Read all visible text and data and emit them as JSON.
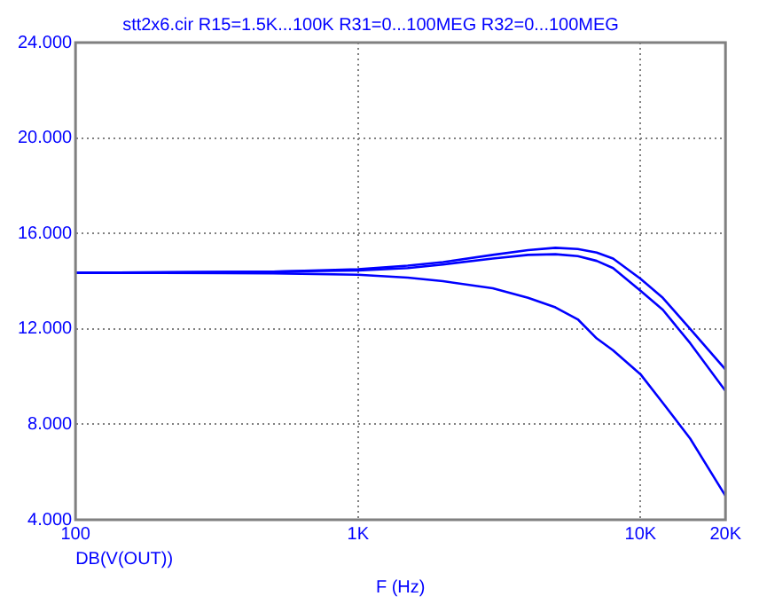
{
  "chart_data": {
    "type": "line",
    "title": "stt2x6.cir R15=1.5K...100K R31=0...100MEG R32=0...100MEG",
    "xlabel": "F (Hz)",
    "annotations": [
      "DB(V(OUT))"
    ],
    "log": "x",
    "x": [
      100,
      200,
      500,
      1000,
      1500,
      2000,
      3000,
      4000,
      5000,
      6000,
      7000,
      8000,
      10000,
      12000,
      15000,
      20000
    ],
    "series": [
      {
        "color": "#0000ff",
        "values": [
          14.35,
          14.37,
          14.4,
          14.5,
          14.65,
          14.8,
          15.1,
          15.3,
          15.4,
          15.35,
          15.2,
          14.95,
          14.1,
          13.3,
          12.0,
          10.3
        ]
      },
      {
        "color": "#0000ff",
        "values": [
          14.35,
          14.37,
          14.4,
          14.45,
          14.55,
          14.7,
          14.95,
          15.1,
          15.13,
          15.05,
          14.85,
          14.55,
          13.6,
          12.8,
          11.4,
          9.4
        ]
      },
      {
        "color": "#0000ff",
        "values": [
          14.35,
          14.35,
          14.33,
          14.27,
          14.15,
          14.0,
          13.7,
          13.3,
          12.9,
          12.4,
          11.6,
          11.1,
          10.1,
          8.9,
          7.4,
          5.0
        ]
      }
    ],
    "xlim": [
      100,
      20000
    ],
    "xticks": [
      100,
      {
        "value": 1000,
        "label": "1K"
      },
      {
        "value": 10000,
        "label": "10K"
      },
      {
        "value": 20000,
        "label": "20K"
      }
    ],
    "ylim": [
      4,
      24
    ],
    "yticks": [
      {
        "value": 4,
        "label": "4.000"
      },
      {
        "value": 8,
        "label": "8.000"
      },
      {
        "value": 12,
        "label": "12.000"
      },
      {
        "value": 16,
        "label": "16.000"
      },
      {
        "value": 20,
        "label": "20.000"
      },
      {
        "value": 24,
        "label": "24.000"
      }
    ],
    "grid": true,
    "legend": false,
    "marker": "none",
    "line_style": "solid"
  }
}
